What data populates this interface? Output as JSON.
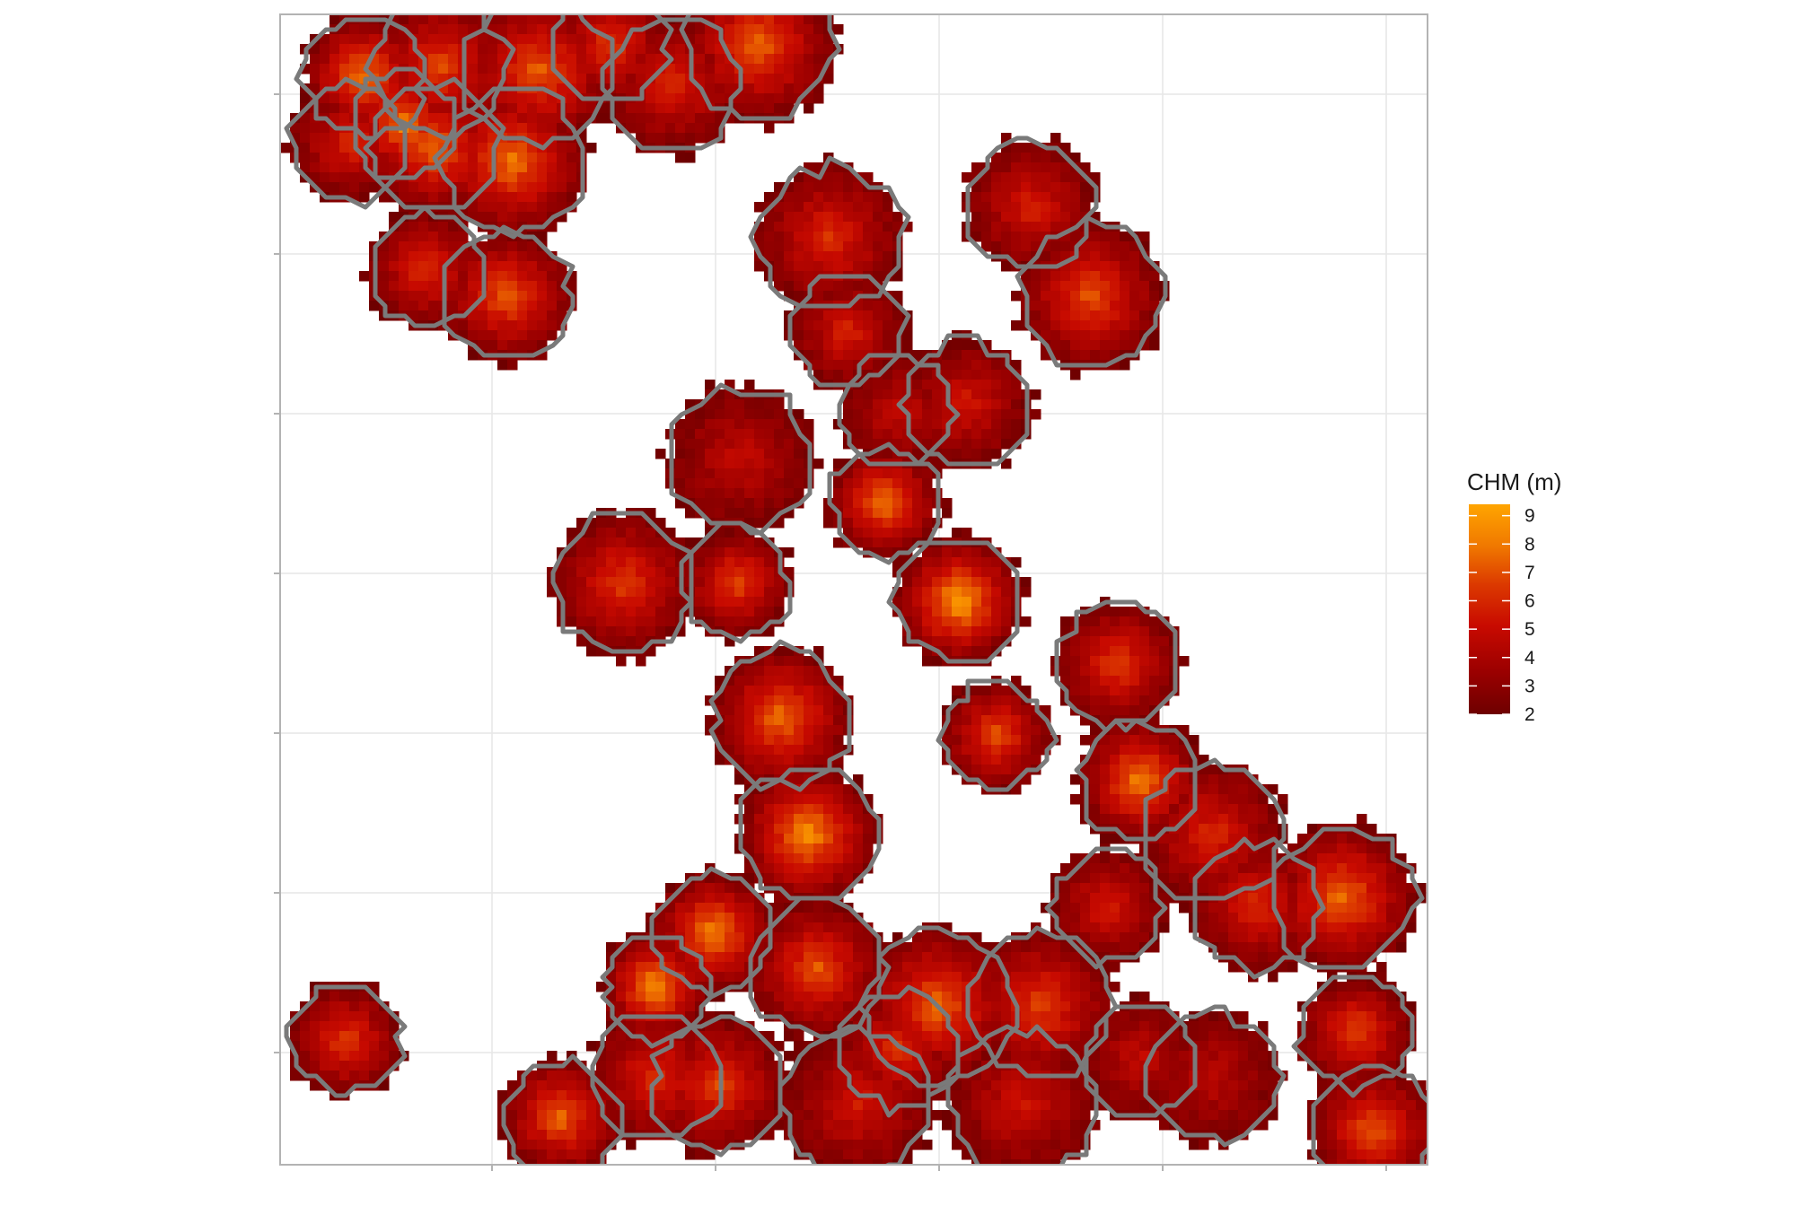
{
  "legend": {
    "title": "CHM (m)",
    "ticks": [
      "9",
      "8",
      "7",
      "6",
      "5",
      "4",
      "3",
      "2"
    ],
    "min": 2,
    "max": 9.4
  },
  "colors": {
    "low": "#6e0000",
    "mid_low": "#a00000",
    "mid": "#d42000",
    "mid_high": "#e86a00",
    "high": "#ffa500",
    "crown_outline": "#7a7a7a",
    "panel_border": "#b3b3b3",
    "grid": "#e6e6e6"
  },
  "chart_data": {
    "type": "heatmap",
    "title": "",
    "xlabel": "",
    "ylabel": "",
    "value_range": [
      2,
      9.4
    ],
    "legend_title": "CHM (m)",
    "legend_ticks": [
      2,
      3,
      4,
      5,
      6,
      7,
      8,
      9
    ],
    "grid": true,
    "tick_labels_shown": false,
    "overlay": "tree crown segmentation outlines",
    "crowns": [
      {
        "id": 1,
        "peak": 8.6
      },
      {
        "id": 2,
        "peak": 8.2
      },
      {
        "id": 3,
        "peak": 7.1
      },
      {
        "id": 4,
        "peak": 7.4
      },
      {
        "id": 5,
        "peak": 6.6
      },
      {
        "id": 6,
        "peak": 6.2
      },
      {
        "id": 7,
        "peak": 7.6
      },
      {
        "id": 8,
        "peak": 6.1
      },
      {
        "id": 9,
        "peak": 7.7
      },
      {
        "id": 10,
        "peak": 8.0
      },
      {
        "id": 11,
        "peak": 6.5
      },
      {
        "id": 12,
        "peak": 7.4
      },
      {
        "id": 13,
        "peak": 6.3
      },
      {
        "id": 14,
        "peak": 6.0
      },
      {
        "id": 15,
        "peak": 5.9
      },
      {
        "id": 16,
        "peak": 7.2
      },
      {
        "id": 17,
        "peak": 5.1
      },
      {
        "id": 18,
        "peak": 5.7
      },
      {
        "id": 19,
        "peak": 5.0
      },
      {
        "id": 20,
        "peak": 8.1
      },
      {
        "id": 21,
        "peak": 9.2
      },
      {
        "id": 22,
        "peak": 6.8
      },
      {
        "id": 23,
        "peak": 7.0
      },
      {
        "id": 24,
        "peak": 6.7
      },
      {
        "id": 25,
        "peak": 7.9
      },
      {
        "id": 26,
        "peak": 7.3
      },
      {
        "id": 27,
        "peak": 8.3
      },
      {
        "id": 28,
        "peak": 8.7
      },
      {
        "id": 29,
        "peak": 8.9
      },
      {
        "id": 30,
        "peak": 8.5
      },
      {
        "id": 31,
        "peak": 7.3
      },
      {
        "id": 32,
        "peak": 7.8
      },
      {
        "id": 33,
        "peak": 6.5
      },
      {
        "id": 34,
        "peak": 6.9
      },
      {
        "id": 35,
        "peak": 5.6
      },
      {
        "id": 36,
        "peak": 7.7
      },
      {
        "id": 37,
        "peak": 6.4
      },
      {
        "id": 38,
        "peak": 5.5
      },
      {
        "id": 39,
        "peak": 5.0
      },
      {
        "id": 40,
        "peak": 4.8
      },
      {
        "id": 41,
        "peak": 6.9
      },
      {
        "id": 42,
        "peak": 6.0
      },
      {
        "id": 43,
        "peak": 6.3
      },
      {
        "id": 44,
        "peak": 8.0
      },
      {
        "id": 45,
        "peak": 7.1
      },
      {
        "id": 46,
        "peak": 7.4
      },
      {
        "id": 47,
        "peak": 6.2
      },
      {
        "id": 48,
        "peak": 6.8
      }
    ]
  }
}
